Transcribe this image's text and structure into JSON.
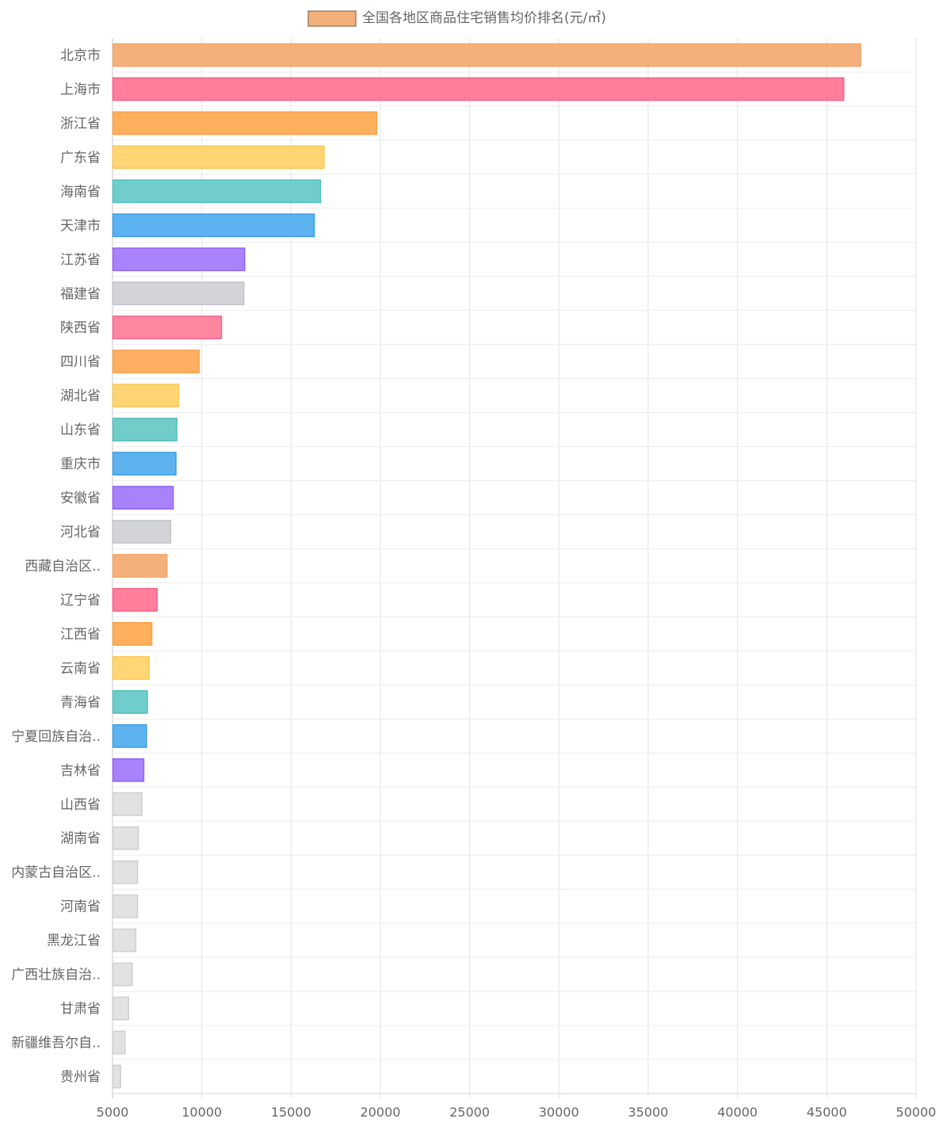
{
  "chart_data": {
    "type": "bar",
    "orientation": "horizontal",
    "legend": {
      "label": "全国各地区商品住宅销售均价排名(元/㎡)",
      "placement": "top-center",
      "color": "#f4b07a"
    },
    "xlim": [
      5000,
      50000
    ],
    "x_ticks": [
      "5000",
      "10000",
      "15000",
      "20000",
      "25000",
      "30000",
      "35000",
      "40000",
      "45000",
      "50000"
    ],
    "grid": true,
    "categories": [
      "北京市",
      "上海市",
      "浙江省",
      "广东省",
      "海南省",
      "天津市",
      "江苏省",
      "福建省",
      "陕西省",
      "四川省",
      "湖北省",
      "山东省",
      "重庆市",
      "安徽省",
      "河北省",
      "西藏自治区..",
      "辽宁省",
      "江西省",
      "云南省",
      "青海省",
      "宁夏回族自治..",
      "吉林省",
      "山西省",
      "湖南省",
      "内蒙古自治区..",
      "河南省",
      "黑龙江省",
      "广西壮族自治..",
      "甘肃省",
      "新疆维吾尔自..",
      "贵州省"
    ],
    "values": [
      46900,
      45950,
      19800,
      16850,
      16650,
      16300,
      12400,
      12350,
      11100,
      9850,
      8700,
      8600,
      8550,
      8400,
      8250,
      8050,
      7500,
      7200,
      7050,
      6950,
      6900,
      6750,
      6650,
      6450,
      6400,
      6400,
      6300,
      6100,
      5900,
      5700,
      5450
    ],
    "colors": [
      "#f4b07a",
      "#ff7f9a",
      "#ffb05c",
      "#ffd673",
      "#70cdcb",
      "#5db3ef",
      "#a883fb",
      "#d3d4d8",
      "#ff869e",
      "#ffaf62",
      "#ffd574",
      "#71ccca",
      "#5eb3ef",
      "#a782fa",
      "#d3d4d8",
      "#f4b07a",
      "#ff7f9a",
      "#ffb05c",
      "#ffd673",
      "#70cdcb",
      "#5db3ef",
      "#a883fb",
      "#e2e2e2",
      "#e2e2e2",
      "#e2e2e2",
      "#e2e2e2",
      "#e2e2e2",
      "#e2e2e2",
      "#e2e2e2",
      "#e2e2e2",
      "#e2e2e2"
    ],
    "border_colors": [
      "#f1a56b",
      "#f8628a",
      "#f9a14a",
      "#f9c95a",
      "#4fbfbd",
      "#3b9de3",
      "#9262f4",
      "#c2c3c8",
      "#f8628a",
      "#f9a14a",
      "#f9c95a",
      "#4fbfbd",
      "#3b9de3",
      "#9262f4",
      "#c2c3c8",
      "#f1a56b",
      "#f8628a",
      "#f9a14a",
      "#f9c95a",
      "#4fbfbd",
      "#3b9de3",
      "#9262f4",
      "#cfcfcf",
      "#cfcfcf",
      "#cfcfcf",
      "#cfcfcf",
      "#cfcfcf",
      "#cfcfcf",
      "#cfcfcf",
      "#cfcfcf",
      "#cfcfcf"
    ]
  }
}
